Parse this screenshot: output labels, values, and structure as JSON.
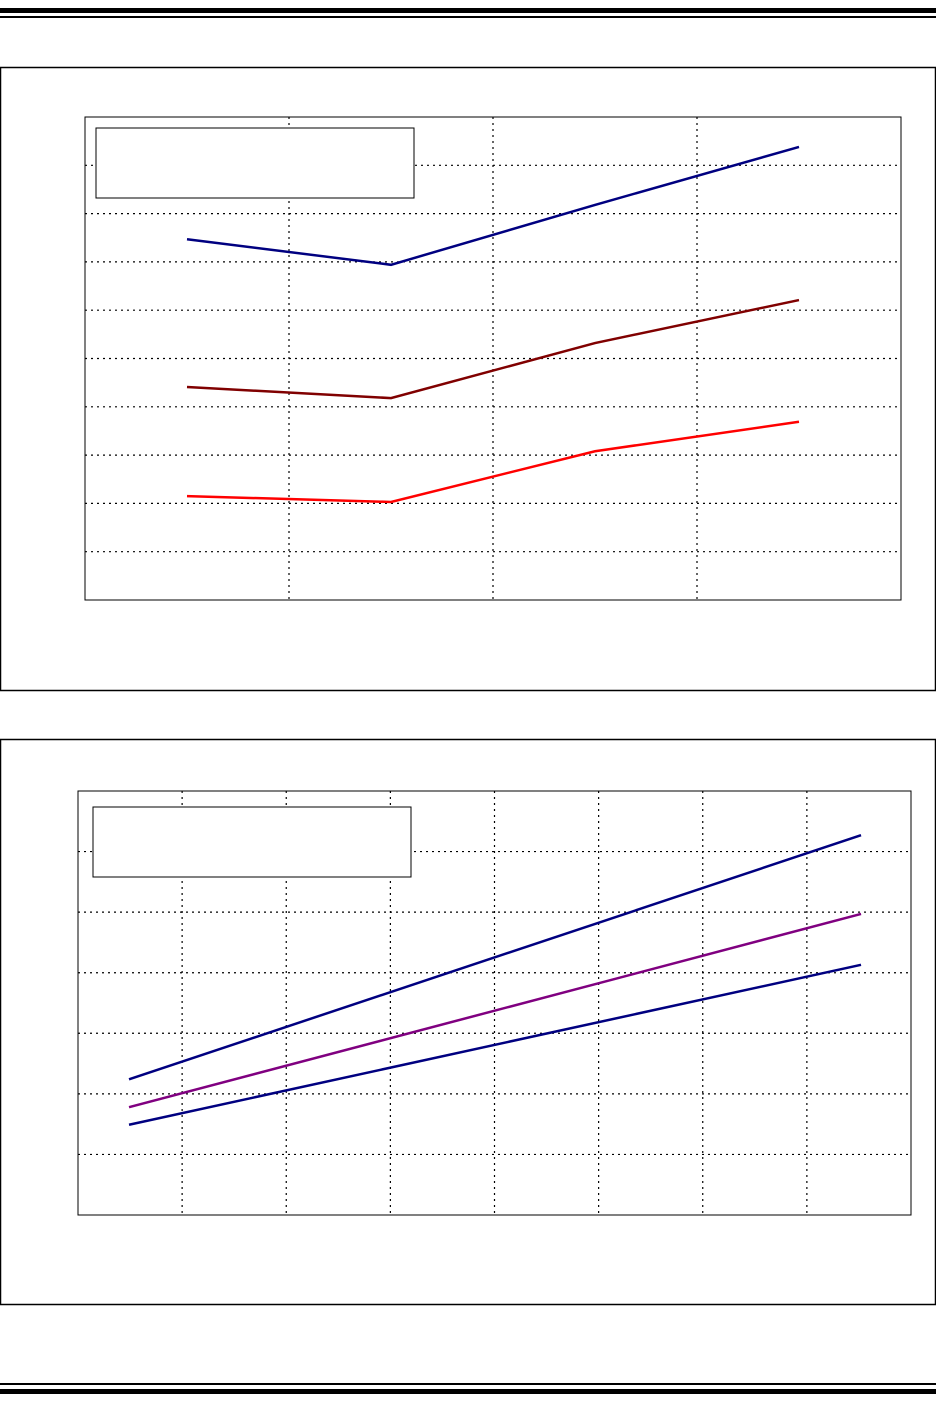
{
  "chart_data": [
    {
      "type": "line",
      "title": "",
      "xlabel": "",
      "ylabel": "",
      "x": [
        0.5,
        1.5,
        2.5,
        3.5
      ],
      "xlim": [
        0,
        4
      ],
      "ylim": [
        0,
        10
      ],
      "grid": true,
      "legend": "top-left",
      "series": [
        {
          "color": "#000080",
          "values": [
            7.47,
            6.94,
            8.18,
            9.38
          ]
        },
        {
          "color": "#800000",
          "values": [
            4.41,
            4.18,
            5.32,
            6.21
          ]
        },
        {
          "color": "#ff0000",
          "values": [
            2.15,
            2.03,
            3.08,
            3.69
          ]
        }
      ]
    },
    {
      "type": "line",
      "title": "",
      "xlabel": "",
      "ylabel": "",
      "x": [
        0.49,
        7.52
      ],
      "xlim": [
        0,
        8
      ],
      "ylim": [
        0,
        7
      ],
      "grid": true,
      "legend": "top-left",
      "series": [
        {
          "color": "#000080",
          "values": [
            2.24,
            6.27
          ]
        },
        {
          "color": "#800080",
          "values": [
            1.78,
            4.97
          ]
        },
        {
          "color": "#000080",
          "values": [
            1.49,
            4.13
          ]
        }
      ]
    }
  ]
}
